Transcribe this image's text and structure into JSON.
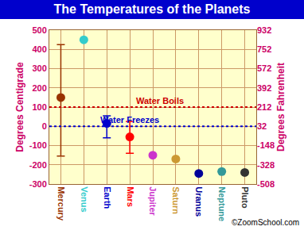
{
  "chart_data": {
    "type": "scatter",
    "title": "The Temperatures of the Planets",
    "y_label": "Degrees Centigrade",
    "y2_label": "Degrees Fahrenheit",
    "categories": [
      "Mercury",
      "Venus",
      "Earth",
      "Mars",
      "Jupiter",
      "Saturn",
      "Uranus",
      "Neptune",
      "Pluto"
    ],
    "values": [
      150,
      450,
      15,
      -55,
      -150,
      -170,
      -245,
      -235,
      -240
    ],
    "error_plus": [
      275,
      null,
      40,
      80,
      null,
      null,
      null,
      null,
      null
    ],
    "error_minus": [
      305,
      null,
      75,
      85,
      null,
      null,
      null,
      null,
      null
    ],
    "colors": [
      "#993300",
      "#33CCCC",
      "#0000CC",
      "#FF0000",
      "#CC33CC",
      "#CC9933",
      "#000099",
      "#339999",
      "#333333"
    ],
    "ylim": [
      -300,
      500
    ],
    "yticks": [
      -300,
      -200,
      -100,
      0,
      100,
      200,
      300,
      400,
      500
    ],
    "y2lim": [
      -508,
      932
    ],
    "y2ticks": [
      -508,
      -328,
      -148,
      32,
      212,
      392,
      572,
      752,
      932
    ],
    "grid": true,
    "marker": "circle",
    "reference_lines": [
      {
        "label": "Water Boils",
        "value": 100,
        "color": "#CC0000",
        "line_style": "dot"
      },
      {
        "label": "Water Freezes",
        "value": 0,
        "color": "#0000CC",
        "line_style": "dot"
      }
    ],
    "annotations": [
      "©ZoomSchool.com"
    ]
  }
}
